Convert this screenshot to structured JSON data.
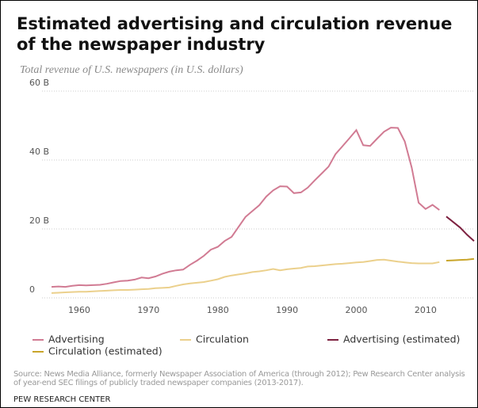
{
  "chart_data": {
    "type": "line",
    "title": "Estimated advertising and circulation revenue of the newspaper industry",
    "subtitle": "Total revenue of U.S. newspapers (in U.S. dollars)",
    "source": "Source: News Media Alliance, formerly Newspaper Association of America (through 2012); Pew Research Center analysis of year-end SEC filings of publicly traded newspaper companies (2013-2017).",
    "credit": "PEW RESEARCH CENTER",
    "xlim": [
      1956,
      2017
    ],
    "xticks": [
      1960,
      1970,
      1980,
      1990,
      2000,
      2010
    ],
    "ylim": [
      0,
      60
    ],
    "yticks": [
      0,
      {
        "value": 20,
        "label": "20 B"
      },
      {
        "value": 40,
        "label": "40 B"
      },
      {
        "value": 60,
        "label": "60 B"
      }
    ],
    "grid": true,
    "series": [
      {
        "name": "Advertising",
        "color": "#d17b93",
        "x": [
          1956,
          1957,
          1958,
          1959,
          1960,
          1961,
          1962,
          1963,
          1964,
          1965,
          1966,
          1967,
          1968,
          1969,
          1970,
          1971,
          1972,
          1973,
          1974,
          1975,
          1976,
          1977,
          1978,
          1979,
          1980,
          1981,
          1982,
          1983,
          1984,
          1985,
          1986,
          1987,
          1988,
          1989,
          1990,
          1991,
          1992,
          1993,
          1994,
          1995,
          1996,
          1997,
          1998,
          1999,
          2000,
          2001,
          2002,
          2003,
          2004,
          2005,
          2006,
          2007,
          2008,
          2009,
          2010,
          2011,
          2012
        ],
        "values": [
          3.2,
          3.3,
          3.2,
          3.5,
          3.7,
          3.6,
          3.7,
          3.8,
          4.1,
          4.5,
          4.9,
          5.0,
          5.3,
          5.9,
          5.7,
          6.2,
          7.0,
          7.6,
          8.0,
          8.2,
          9.6,
          10.8,
          12.2,
          14.0,
          14.8,
          16.5,
          17.7,
          20.6,
          23.5,
          25.2,
          26.9,
          29.4,
          31.2,
          32.4,
          32.3,
          30.4,
          30.6,
          32.0,
          34.1,
          36.1,
          38.1,
          41.7,
          44.0,
          46.3,
          48.7,
          44.3,
          44.1,
          46.2,
          48.2,
          49.4,
          49.3,
          45.4,
          37.8,
          27.6,
          25.8,
          27.0,
          25.5
        ]
      },
      {
        "name": "Circulation",
        "color": "#ebd08c",
        "x": [
          1956,
          1957,
          1958,
          1959,
          1960,
          1961,
          1962,
          1963,
          1964,
          1965,
          1966,
          1967,
          1968,
          1969,
          1970,
          1971,
          1972,
          1973,
          1974,
          1975,
          1976,
          1977,
          1978,
          1979,
          1980,
          1981,
          1982,
          1983,
          1984,
          1985,
          1986,
          1987,
          1988,
          1989,
          1990,
          1991,
          1992,
          1993,
          1994,
          1995,
          1996,
          1997,
          1998,
          1999,
          2000,
          2001,
          2002,
          2003,
          2004,
          2005,
          2006,
          2007,
          2008,
          2009,
          2010,
          2011,
          2012
        ],
        "values": [
          1.4,
          1.5,
          1.6,
          1.7,
          1.8,
          1.8,
          1.9,
          2.0,
          2.1,
          2.2,
          2.3,
          2.3,
          2.4,
          2.5,
          2.6,
          2.8,
          2.9,
          3.0,
          3.5,
          3.9,
          4.2,
          4.4,
          4.6,
          5.0,
          5.4,
          6.1,
          6.5,
          6.8,
          7.1,
          7.5,
          7.7,
          8.0,
          8.4,
          8.0,
          8.3,
          8.5,
          8.7,
          9.1,
          9.2,
          9.4,
          9.6,
          9.8,
          9.9,
          10.1,
          10.3,
          10.4,
          10.7,
          11.0,
          11.1,
          10.8,
          10.5,
          10.3,
          10.1,
          10.0,
          10.0,
          10.0,
          10.4
        ]
      },
      {
        "name": "Advertising (estimated)",
        "color": "#7d2140",
        "x": [
          2013,
          2014,
          2015,
          2016,
          2017
        ],
        "values": [
          23.6,
          22.0,
          20.4,
          18.3,
          16.5
        ]
      },
      {
        "name": "Circulation (estimated)",
        "color": "#c9a52a",
        "x": [
          2013,
          2014,
          2015,
          2016,
          2017
        ],
        "values": [
          10.8,
          10.9,
          11.0,
          11.1,
          11.3
        ]
      }
    ]
  }
}
